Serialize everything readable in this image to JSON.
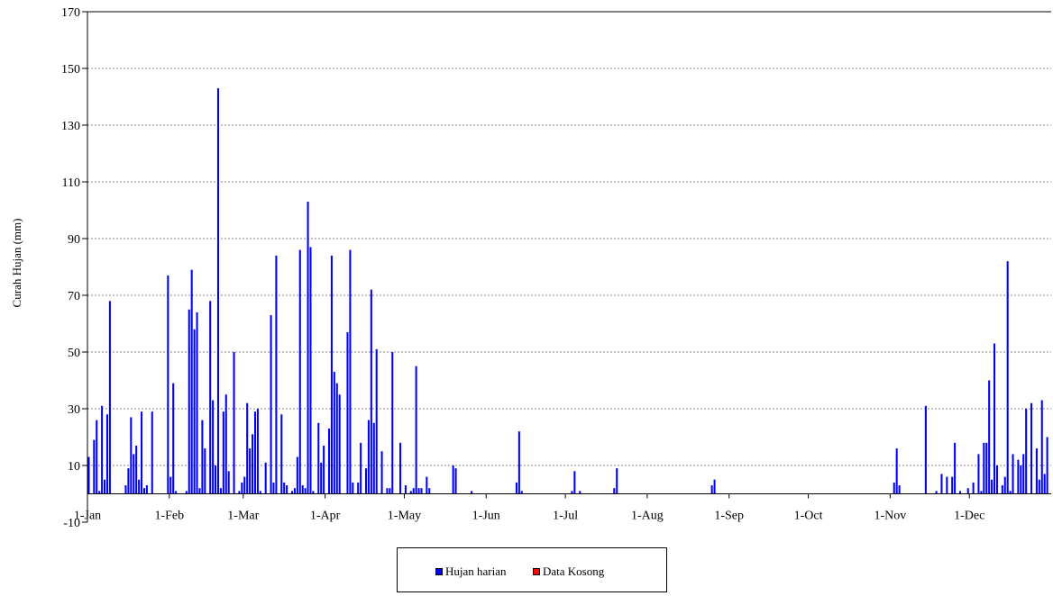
{
  "chart_data": {
    "type": "bar",
    "ylabel": "Curah Hujan (mm)",
    "xlabel": "",
    "title": "",
    "ylim": [
      -10,
      170
    ],
    "yticks": [
      -10,
      10,
      30,
      50,
      70,
      90,
      110,
      130,
      150,
      170
    ],
    "xlim_day": [
      1,
      366
    ],
    "x_tick_labels": [
      "1-Jan",
      "1-Feb",
      "1-Mar",
      "1-Apr",
      "1-May",
      "1-Jun",
      "1-Jul",
      "1-Aug",
      "1-Sep",
      "1-Oct",
      "1-Nov",
      "1-Dec"
    ],
    "x_tick_days": [
      1,
      32,
      60,
      91,
      121,
      152,
      182,
      213,
      244,
      274,
      305,
      335
    ],
    "grid": "horizontal dotted",
    "legend_placement": "bottom-center",
    "series": [
      {
        "name": "Hujan harian",
        "color": "#0000ff",
        "points": [
          [
            1,
            13
          ],
          [
            3,
            19
          ],
          [
            4,
            26
          ],
          [
            5,
            1
          ],
          [
            6,
            31
          ],
          [
            7,
            5
          ],
          [
            8,
            28
          ],
          [
            9,
            68
          ],
          [
            15,
            3
          ],
          [
            16,
            9
          ],
          [
            17,
            27
          ],
          [
            18,
            14
          ],
          [
            19,
            17
          ],
          [
            20,
            5
          ],
          [
            21,
            29
          ],
          [
            22,
            2
          ],
          [
            23,
            3
          ],
          [
            25,
            29
          ],
          [
            31,
            77
          ],
          [
            32,
            6
          ],
          [
            33,
            39
          ],
          [
            34,
            1
          ],
          [
            38,
            1
          ],
          [
            39,
            65
          ],
          [
            40,
            79
          ],
          [
            41,
            58
          ],
          [
            42,
            64
          ],
          [
            43,
            2
          ],
          [
            44,
            26
          ],
          [
            45,
            16
          ],
          [
            47,
            68
          ],
          [
            48,
            33
          ],
          [
            49,
            10
          ],
          [
            50,
            143
          ],
          [
            51,
            2
          ],
          [
            52,
            29
          ],
          [
            53,
            35
          ],
          [
            54,
            8
          ],
          [
            56,
            50
          ],
          [
            58,
            1
          ],
          [
            59,
            4
          ],
          [
            60,
            6
          ],
          [
            61,
            32
          ],
          [
            62,
            16
          ],
          [
            63,
            21
          ],
          [
            64,
            29
          ],
          [
            65,
            30
          ],
          [
            66,
            1
          ],
          [
            68,
            11
          ],
          [
            70,
            63
          ],
          [
            71,
            4
          ],
          [
            72,
            84
          ],
          [
            74,
            28
          ],
          [
            75,
            4
          ],
          [
            76,
            3
          ],
          [
            78,
            1
          ],
          [
            79,
            2
          ],
          [
            80,
            13
          ],
          [
            81,
            86
          ],
          [
            82,
            3
          ],
          [
            83,
            2
          ],
          [
            84,
            103
          ],
          [
            85,
            87
          ],
          [
            86,
            1
          ],
          [
            88,
            25
          ],
          [
            89,
            11
          ],
          [
            90,
            17
          ],
          [
            92,
            23
          ],
          [
            93,
            84
          ],
          [
            94,
            43
          ],
          [
            95,
            39
          ],
          [
            96,
            35
          ],
          [
            99,
            57
          ],
          [
            100,
            86
          ],
          [
            101,
            4
          ],
          [
            103,
            4
          ],
          [
            104,
            18
          ],
          [
            106,
            9
          ],
          [
            107,
            26
          ],
          [
            108,
            72
          ],
          [
            109,
            25
          ],
          [
            110,
            51
          ],
          [
            112,
            15
          ],
          [
            114,
            2
          ],
          [
            115,
            2
          ],
          [
            116,
            50
          ],
          [
            119,
            18
          ],
          [
            121,
            3
          ],
          [
            123,
            1
          ],
          [
            124,
            2
          ],
          [
            125,
            45
          ],
          [
            126,
            2
          ],
          [
            127,
            2
          ],
          [
            129,
            6
          ],
          [
            130,
            2
          ],
          [
            139,
            10
          ],
          [
            140,
            9
          ],
          [
            146,
            1
          ],
          [
            163,
            4
          ],
          [
            164,
            22
          ],
          [
            165,
            1
          ],
          [
            184,
            1
          ],
          [
            185,
            8
          ],
          [
            187,
            1
          ],
          [
            200,
            2
          ],
          [
            201,
            9
          ],
          [
            237,
            3
          ],
          [
            238,
            5
          ],
          [
            306,
            4
          ],
          [
            307,
            16
          ],
          [
            308,
            3
          ],
          [
            318,
            31
          ],
          [
            322,
            1
          ],
          [
            324,
            7
          ],
          [
            326,
            6
          ],
          [
            328,
            6
          ],
          [
            329,
            18
          ],
          [
            331,
            1
          ],
          [
            334,
            2
          ],
          [
            336,
            4
          ],
          [
            338,
            14
          ],
          [
            339,
            1
          ],
          [
            340,
            18
          ],
          [
            341,
            18
          ],
          [
            342,
            40
          ],
          [
            343,
            5
          ],
          [
            344,
            53
          ],
          [
            345,
            10
          ],
          [
            347,
            3
          ],
          [
            348,
            6
          ],
          [
            349,
            82
          ],
          [
            350,
            1
          ],
          [
            351,
            14
          ],
          [
            353,
            12
          ],
          [
            354,
            10
          ],
          [
            355,
            14
          ],
          [
            356,
            30
          ],
          [
            358,
            32
          ],
          [
            360,
            16
          ],
          [
            361,
            5
          ],
          [
            362,
            33
          ],
          [
            363,
            7
          ],
          [
            364,
            20
          ]
        ]
      },
      {
        "name": "Data Kosong",
        "color": "#ff0000",
        "points": []
      }
    ]
  }
}
